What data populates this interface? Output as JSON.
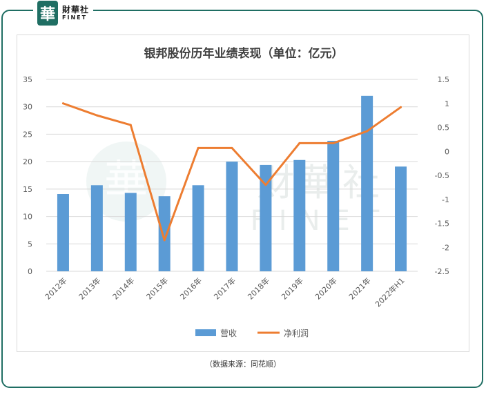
{
  "logo": {
    "seal_char": "華",
    "cn_name": "財華社",
    "en_name": "FINET"
  },
  "watermark": {
    "cn": "財華社",
    "en": "FINET",
    "seal_char": "華"
  },
  "source_note": "（数据来源：同花顺）",
  "colors": {
    "frame": "#1f6e63",
    "bar": "#5b9bd5",
    "line": "#ed7d31",
    "grid": "#d9d9d9",
    "axis_text": "#595959"
  },
  "chart_data": {
    "type": "bar",
    "title": "银邦股份历年业绩表现（单位：亿元）",
    "categories": [
      "2012年",
      "2013年",
      "2014年",
      "2015年",
      "2016年",
      "2017年",
      "2018年",
      "2019年",
      "2020年",
      "2021年",
      "2022年H1"
    ],
    "series": [
      {
        "name": "营收",
        "type": "bar",
        "axis": "left",
        "values": [
          14.1,
          15.7,
          14.3,
          13.7,
          15.7,
          20.0,
          19.4,
          20.3,
          23.8,
          32.0,
          19.1
        ]
      },
      {
        "name": "净利润",
        "type": "line",
        "axis": "right",
        "values": [
          1.0,
          0.75,
          0.55,
          -1.85,
          0.07,
          0.07,
          -0.7,
          0.17,
          0.17,
          0.42,
          0.92
        ]
      }
    ],
    "y_left": {
      "min": 0,
      "max": 35,
      "ticks": [
        "0",
        "5",
        "10",
        "15",
        "20",
        "25",
        "30",
        "35"
      ]
    },
    "y_right": {
      "min": -2.5,
      "max": 1.5,
      "ticks": [
        "-2.5",
        "-2",
        "-1.5",
        "-1",
        "-0.5",
        "0",
        "0.5",
        "1",
        "1.5"
      ]
    },
    "grid": true,
    "legend_position": "bottom"
  }
}
